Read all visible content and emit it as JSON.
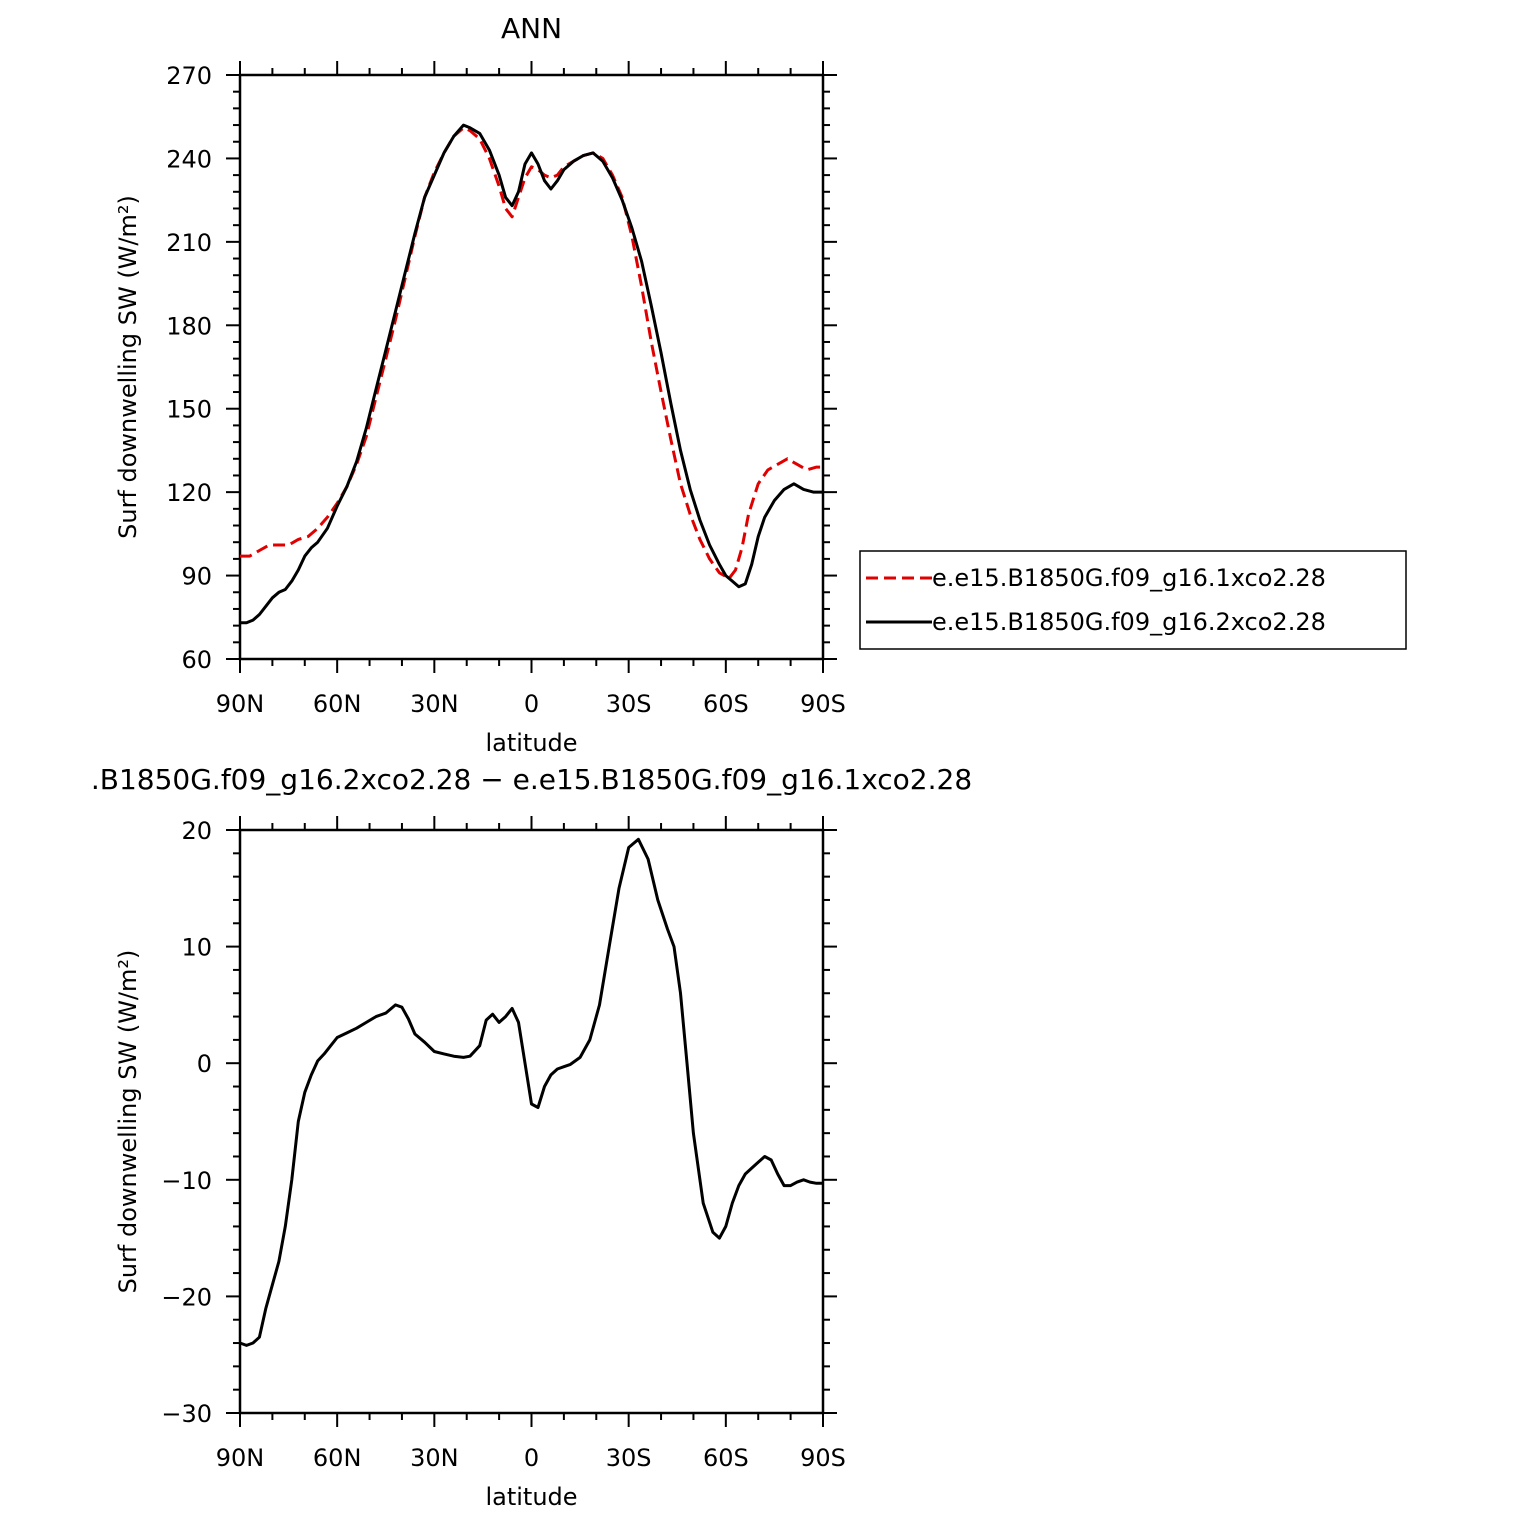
{
  "chart_data": [
    {
      "type": "line",
      "title": "ANN",
      "xlabel": "latitude",
      "ylabel": "Surf downwelling SW (W/m²)",
      "xlim": [
        90,
        -90
      ],
      "ylim": [
        60,
        270
      ],
      "xticks": [
        {
          "value": 90,
          "label": "90N"
        },
        {
          "value": 60,
          "label": "60N"
        },
        {
          "value": 30,
          "label": "30N"
        },
        {
          "value": 0,
          "label": "0"
        },
        {
          "value": -30,
          "label": "30S"
        },
        {
          "value": -60,
          "label": "60S"
        },
        {
          "value": -90,
          "label": "90S"
        }
      ],
      "yticks": [
        60,
        90,
        120,
        150,
        180,
        210,
        240,
        270
      ],
      "legend": "right",
      "series": [
        {
          "name": "e.e15.B1850G.f09_g16.1xco2.28",
          "color": "#e00000",
          "dash": true,
          "x": [
            90,
            87,
            84,
            81,
            78,
            75,
            72,
            69,
            66,
            63,
            60,
            57,
            54,
            51,
            48,
            45,
            42,
            39,
            36,
            33,
            30,
            27,
            24,
            21,
            19,
            16,
            13,
            10,
            8,
            6,
            4,
            2,
            0,
            -2,
            -4,
            -6,
            -8,
            -10,
            -13,
            -16,
            -19,
            -22,
            -25,
            -28,
            -31,
            -34,
            -37,
            -40,
            -43,
            -46,
            -49,
            -52,
            -55,
            -58,
            -61,
            -63,
            -65,
            -67,
            -70,
            -73,
            -76,
            -79,
            -82,
            -85,
            -88,
            -90
          ],
          "y": [
            97,
            97,
            99,
            101,
            101,
            101,
            103,
            104,
            107,
            111,
            116,
            122,
            130,
            140,
            154,
            168,
            182,
            197,
            212,
            226,
            235,
            242,
            248,
            251,
            250,
            247,
            240,
            230,
            222,
            219,
            226,
            233,
            237,
            236,
            234,
            233,
            234,
            237,
            239,
            241,
            242,
            240,
            234,
            226,
            212,
            194,
            174,
            156,
            139,
            123,
            112,
            103,
            96,
            91,
            89,
            92,
            100,
            112,
            123,
            128,
            130,
            132,
            130,
            128,
            129,
            129
          ]
        },
        {
          "name": "e.e15.B1850G.f09_g16.2xco2.28",
          "color": "#000000",
          "dash": false,
          "x": [
            90,
            88,
            86,
            84,
            82,
            80,
            78,
            76,
            74,
            72,
            70,
            68,
            66,
            63,
            60,
            57,
            54,
            51,
            48,
            45,
            42,
            39,
            36,
            33,
            30,
            27,
            24,
            21,
            19,
            16,
            13,
            10,
            8,
            6,
            4,
            2,
            0,
            -2,
            -4,
            -6,
            -8,
            -10,
            -13,
            -16,
            -19,
            -22,
            -25,
            -28,
            -31,
            -34,
            -37,
            -40,
            -43,
            -46,
            -49,
            -52,
            -55,
            -58,
            -60,
            -62,
            -64,
            -66,
            -68,
            -70,
            -72,
            -75,
            -78,
            -81,
            -84,
            -87,
            -90
          ],
          "y": [
            73,
            73,
            74,
            76,
            79,
            82,
            84,
            85,
            88,
            92,
            97,
            100,
            102,
            107,
            115,
            122,
            131,
            143,
            157,
            171,
            185,
            199,
            213,
            226,
            234,
            242,
            248,
            252,
            251,
            249,
            243,
            234,
            226,
            223,
            228,
            238,
            242,
            238,
            232,
            229,
            232,
            236,
            239,
            241,
            242,
            239,
            233,
            225,
            215,
            203,
            187,
            170,
            152,
            135,
            121,
            110,
            101,
            94,
            90,
            88,
            86,
            87,
            94,
            104,
            111,
            117,
            121,
            123,
            121,
            120,
            120
          ]
        }
      ]
    },
    {
      "type": "line",
      "title": ".B1850G.f09_g16.2xco2.28 − e.e15.B1850G.f09_g16.1xco2.28",
      "xlabel": "latitude",
      "ylabel": "Surf downwelling SW (W/m²)",
      "xlim": [
        90,
        -90
      ],
      "ylim": [
        -30,
        20
      ],
      "xticks": [
        {
          "value": 90,
          "label": "90N"
        },
        {
          "value": 60,
          "label": "60N"
        },
        {
          "value": 30,
          "label": "30N"
        },
        {
          "value": 0,
          "label": "0"
        },
        {
          "value": -30,
          "label": "30S"
        },
        {
          "value": -60,
          "label": "60S"
        },
        {
          "value": -90,
          "label": "90S"
        }
      ],
      "yticks": [
        -30,
        -20,
        -10,
        0,
        10,
        20
      ],
      "series": [
        {
          "color": "#000000",
          "dash": false,
          "x": [
            90,
            88,
            86,
            84,
            82,
            80,
            78,
            76,
            74,
            72,
            70,
            68,
            66,
            64,
            62,
            60,
            57,
            54,
            51,
            48,
            45,
            42,
            40,
            38,
            36,
            33,
            30,
            27,
            24,
            21,
            19,
            16,
            14,
            12,
            10,
            8,
            6,
            4,
            2,
            0,
            -2,
            -4,
            -6,
            -8,
            -10,
            -12,
            -15,
            -18,
            -21,
            -24,
            -27,
            -30,
            -33,
            -36,
            -39,
            -42,
            -44,
            -46,
            -48,
            -50,
            -53,
            -56,
            -58,
            -60,
            -62,
            -64,
            -66,
            -68,
            -70,
            -72,
            -74,
            -76,
            -78,
            -80,
            -82,
            -84,
            -86,
            -88,
            -90
          ],
          "y": [
            -24,
            -24.2,
            -24,
            -23.5,
            -21,
            -19,
            -17,
            -14,
            -10,
            -5,
            -2.5,
            -1,
            0.2,
            0.8,
            1.5,
            2.2,
            2.6,
            3.0,
            3.5,
            4.0,
            4.3,
            5.0,
            4.8,
            3.8,
            2.5,
            1.8,
            1.0,
            0.8,
            0.6,
            0.5,
            0.6,
            1.5,
            3.7,
            4.2,
            3.5,
            4.0,
            4.7,
            3.5,
            0,
            -3.5,
            -3.8,
            -2.0,
            -1.0,
            -0.5,
            -0.3,
            -0.1,
            0.5,
            2.0,
            5.0,
            10.0,
            15.0,
            18.5,
            19.2,
            17.5,
            14.0,
            11.5,
            10.0,
            6.0,
            0.0,
            -6.0,
            -12.0,
            -14.5,
            -15.0,
            -14.0,
            -12.0,
            -10.5,
            -9.5,
            -9.0,
            -8.5,
            -8.0,
            -8.3,
            -9.5,
            -10.5,
            -10.5,
            -10.2,
            -10.0,
            -10.2,
            -10.3,
            -10.3
          ]
        }
      ]
    }
  ]
}
